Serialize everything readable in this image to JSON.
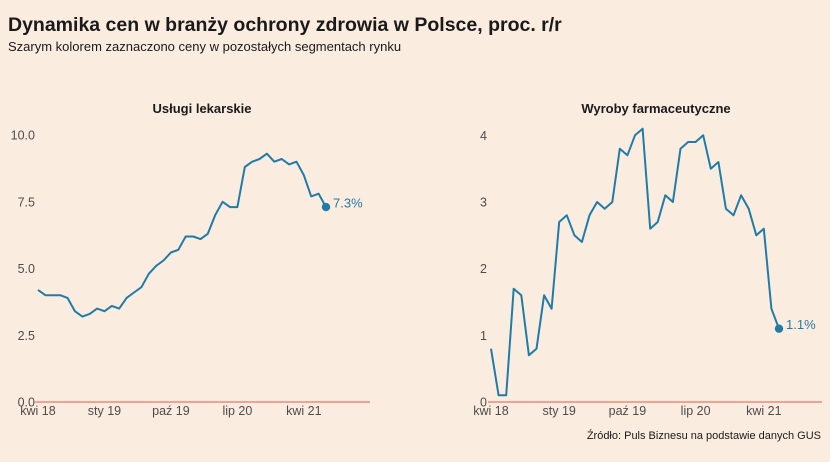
{
  "header": {
    "title": "Dynamika cen w branży ochrony zdrowia w Polsce, proc. r/r",
    "subtitle": "Szarym kolorem zaznaczono ceny w pozostałych segmentach rynku"
  },
  "footer": {
    "source": "Źródło: Puls Biznesu na podstawie danych GUS"
  },
  "colors": {
    "line": "#1f7ca8",
    "zero_line": "#e8584a",
    "background": "#fbece0"
  },
  "chart_data": [
    {
      "type": "line",
      "title": "Usługi lekarskie",
      "x_ticks": [
        "kwi 18",
        "sty 19",
        "paź 19",
        "lip 20",
        "kwi 21"
      ],
      "x_tick_index": [
        0,
        9,
        18,
        27,
        36
      ],
      "y_ticks": [
        "0.0",
        "2.5",
        "5.0",
        "7.5",
        "10.0"
      ],
      "ylim": [
        0,
        10
      ],
      "grid": false,
      "series": [
        {
          "values": [
            4.2,
            4.0,
            4.0,
            4.0,
            3.9,
            3.4,
            3.2,
            3.3,
            3.5,
            3.4,
            3.6,
            3.5,
            3.9,
            4.1,
            4.3,
            4.8,
            5.1,
            5.3,
            5.6,
            5.7,
            6.2,
            6.2,
            6.1,
            6.3,
            7.0,
            7.5,
            7.3,
            7.3,
            8.8,
            9.0,
            9.1,
            9.3,
            9.0,
            9.1,
            8.9,
            9.0,
            8.5,
            7.7,
            7.8,
            7.3
          ]
        }
      ],
      "end_label": "7.3%"
    },
    {
      "type": "line",
      "title": "Wyroby farmaceutyczne",
      "x_ticks": [
        "kwi 18",
        "sty 19",
        "paź 19",
        "lip 20",
        "kwi 21"
      ],
      "x_tick_index": [
        0,
        9,
        18,
        27,
        36
      ],
      "y_ticks": [
        "0",
        "1",
        "2",
        "3",
        "4"
      ],
      "ylim": [
        0,
        4.5
      ],
      "grid": false,
      "series": [
        {
          "values": [
            0.8,
            0.1,
            0.1,
            1.7,
            1.6,
            0.7,
            0.8,
            1.6,
            1.4,
            2.7,
            2.8,
            2.5,
            2.4,
            2.8,
            3.0,
            2.9,
            3.0,
            3.8,
            3.7,
            4.0,
            4.1,
            2.6,
            2.7,
            3.1,
            3.0,
            3.8,
            3.9,
            3.9,
            4.0,
            3.5,
            3.6,
            2.9,
            2.8,
            3.1,
            2.9,
            2.5,
            2.6,
            1.4,
            1.1
          ]
        }
      ],
      "end_label": "1.1%"
    }
  ]
}
